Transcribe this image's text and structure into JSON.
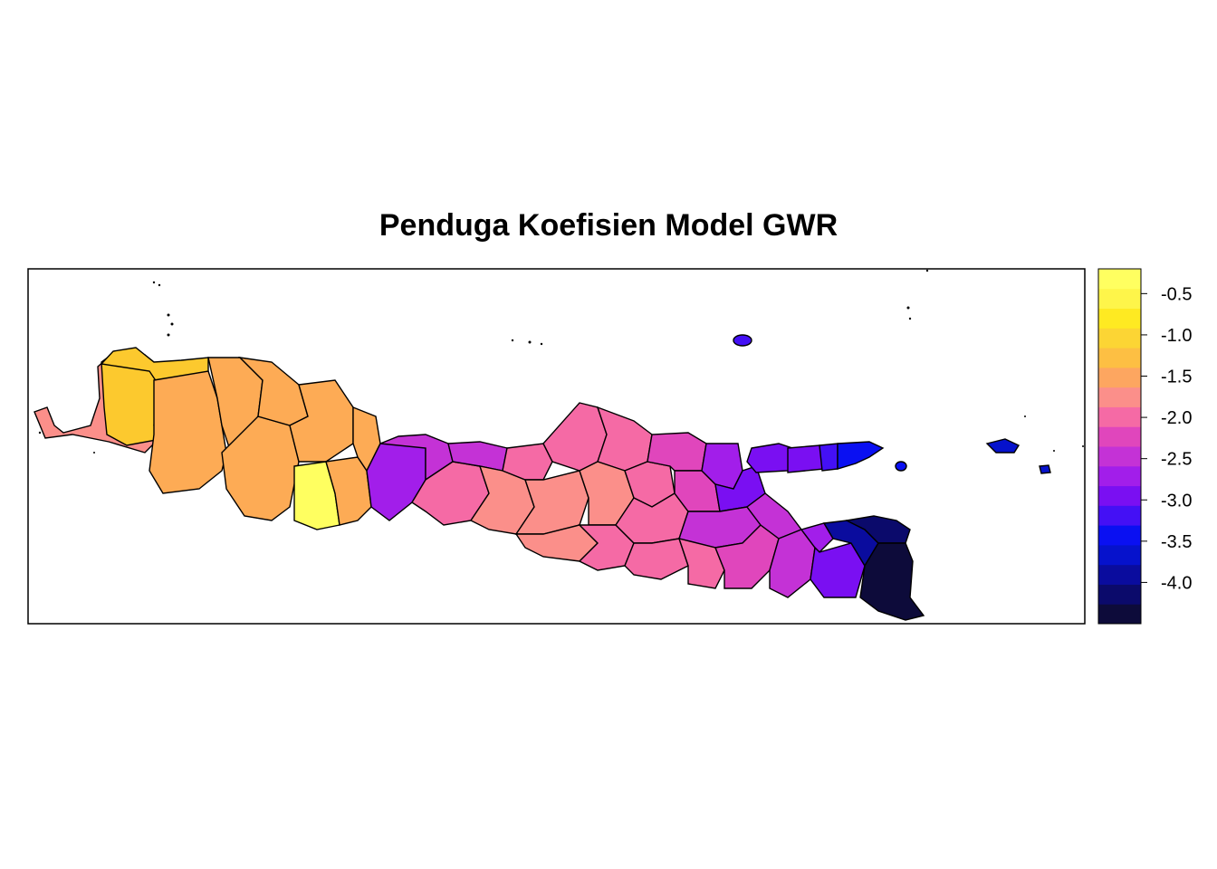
{
  "title": "Penduga Koefisien Model GWR",
  "legend": {
    "colors": [
      "#0D0B3A",
      "#0B0A6B",
      "#0A0C9E",
      "#0612CC",
      "#0A10F2",
      "#4410F5",
      "#7A0FF2",
      "#A21EEA",
      "#C432D6",
      "#E046BC",
      "#F56AA5",
      "#FB8F8A",
      "#FDA660",
      "#FDBF43",
      "#FCD534",
      "#FEEA22",
      "#FEF54A",
      "#FFFF60"
    ],
    "ticks": [
      "-0.5",
      "-1.0",
      "-1.5",
      "-2.0",
      "-2.5",
      "-3.0",
      "-3.5",
      "-4.0"
    ]
  },
  "map": {
    "region": "Java, Indonesia",
    "value_range": [
      -4.5,
      -0.2
    ]
  }
}
